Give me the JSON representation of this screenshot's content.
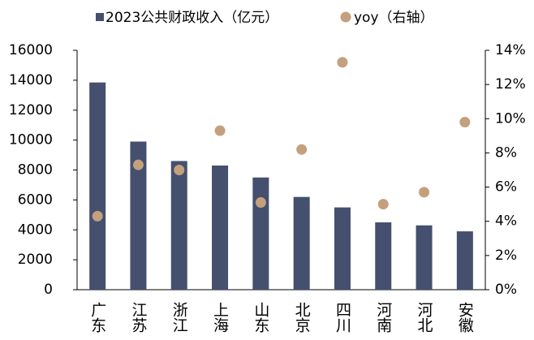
{
  "chart_data": {
    "type": "bar",
    "categories": [
      "广东",
      "江苏",
      "浙江",
      "上海",
      "山东",
      "北京",
      "四川",
      "河南",
      "河北",
      "安徽"
    ],
    "series": [
      {
        "name": "2023公共财政收入（亿元）",
        "color": "#44506e",
        "type": "bar",
        "values": [
          13850,
          9900,
          8600,
          8300,
          7500,
          6200,
          5500,
          4500,
          4300,
          3900
        ]
      },
      {
        "name": "yoy（右轴）",
        "color": "#c4a07e",
        "type": "scatter",
        "axis": "y2",
        "values": [
          4.3,
          7.3,
          7.0,
          9.3,
          5.1,
          8.2,
          13.3,
          5.0,
          5.7,
          9.8
        ]
      }
    ],
    "ylim": [
      0,
      16000
    ],
    "yticks": [
      0,
      2000,
      4000,
      6000,
      8000,
      10000,
      12000,
      14000,
      16000
    ],
    "y2lim": [
      0,
      14
    ],
    "y2ticks": [
      {
        "value": 0,
        "label": "0%"
      },
      {
        "value": 2,
        "label": "2%"
      },
      {
        "value": 4,
        "label": "4%"
      },
      {
        "value": 6,
        "label": "6%"
      },
      {
        "value": 8,
        "label": "8%"
      },
      {
        "value": 10,
        "label": "10%"
      },
      {
        "value": 12,
        "label": "12%"
      },
      {
        "value": 14,
        "label": "14%"
      }
    ],
    "legend": "top"
  }
}
